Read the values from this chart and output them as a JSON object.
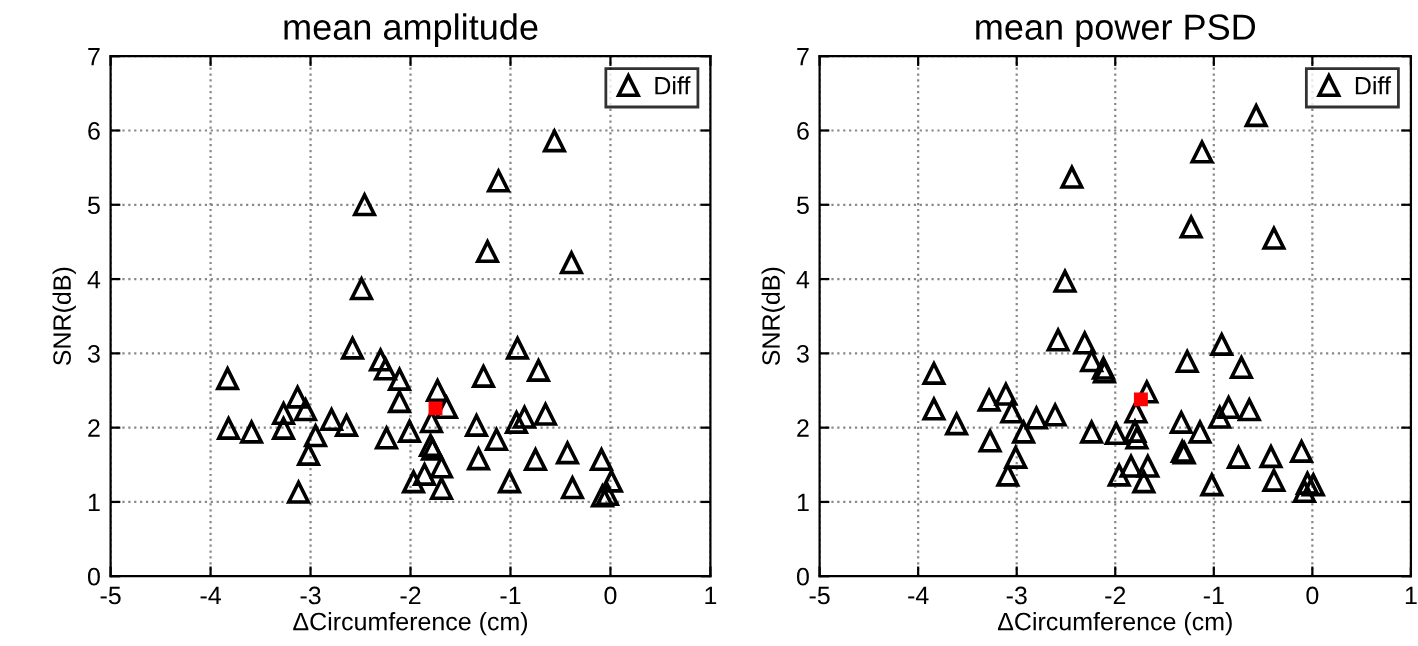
{
  "chart_data": [
    {
      "type": "scatter",
      "title": "mean amplitude",
      "xlabel": "ΔCircumference (cm)",
      "ylabel": "SNR(dB)",
      "xlim": [
        -5,
        1
      ],
      "ylim": [
        0,
        7
      ],
      "xticks": [
        -5,
        -4,
        -3,
        -2,
        -1,
        0,
        1
      ],
      "yticks": [
        0,
        1,
        2,
        3,
        4,
        5,
        6,
        7
      ],
      "grid": true,
      "legend": "top right",
      "series": [
        {
          "name": "Diff",
          "color": "#000000",
          "marker": "triangle",
          "x": [
            -0.56,
            -1.12,
            -2.46,
            -1.23,
            -0.39,
            -2.49,
            -2.58,
            -0.93,
            -2.3,
            -2.25,
            -0.72,
            -3.83,
            -1.27,
            -2.11,
            -3.13,
            -2.11,
            -1.73,
            -1.64,
            -3.27,
            -3.05,
            -0.65,
            -0.86,
            -0.94,
            -2.79,
            -2.64,
            -3.82,
            -3.59,
            -3.27,
            -2.95,
            -1.79,
            -2.01,
            -2.24,
            -1.34,
            -1.14,
            -1.8,
            -1.78,
            -3.02,
            -1.32,
            -0.43,
            -0.75,
            -0.09,
            -1.69,
            -1.86,
            -1.97,
            -1.69,
            -1.01,
            -0.38,
            0.01,
            -0.08,
            -0.03,
            -3.12
          ],
          "values": [
            5.86,
            5.32,
            5.0,
            4.37,
            4.22,
            3.87,
            3.07,
            3.07,
            2.91,
            2.79,
            2.77,
            2.66,
            2.69,
            2.65,
            2.41,
            2.35,
            2.5,
            2.27,
            2.19,
            2.24,
            2.18,
            2.14,
            2.07,
            2.11,
            2.03,
            1.99,
            1.94,
            1.99,
            1.89,
            2.08,
            1.95,
            1.86,
            2.03,
            1.84,
            1.76,
            1.71,
            1.64,
            1.58,
            1.66,
            1.57,
            1.57,
            1.47,
            1.37,
            1.27,
            1.18,
            1.27,
            1.19,
            1.28,
            1.08,
            1.1,
            1.13
          ]
        },
        {
          "color": "#ff0000",
          "marker": "square",
          "x": [
            -1.75
          ],
          "values": [
            2.26
          ]
        }
      ]
    },
    {
      "type": "scatter",
      "title": "mean power PSD",
      "xlabel": "ΔCircumference (cm)",
      "ylabel": "SNR(dB)",
      "xlim": [
        -5,
        1
      ],
      "ylim": [
        0,
        7
      ],
      "xticks": [
        -5,
        -4,
        -3,
        -2,
        -1,
        0,
        1
      ],
      "yticks": [
        0,
        1,
        2,
        3,
        4,
        5,
        6,
        7
      ],
      "grid": true,
      "legend": "top right",
      "series": [
        {
          "name": "Diff",
          "color": "#000000",
          "marker": "triangle",
          "x": [
            -0.57,
            -1.12,
            -2.44,
            -1.23,
            -0.39,
            -2.51,
            -2.58,
            -2.31,
            -0.92,
            -2.24,
            -2.12,
            -2.11,
            -1.27,
            -0.72,
            -3.84,
            -3.11,
            -3.28,
            -3.05,
            -3.84,
            -3.61,
            -2.8,
            -2.61,
            -2.93,
            -1.68,
            -1.79,
            -0.85,
            -0.64,
            -0.94,
            -1.33,
            -2.24,
            -1.99,
            -1.8,
            -1.78,
            -1.14,
            -3.27,
            -3.01,
            -1.32,
            -1.3,
            -0.75,
            -0.42,
            -0.11,
            -1.84,
            -1.67,
            -1.96,
            -3.09,
            -1.71,
            -1.02,
            -0.39,
            -0.05,
            0.01,
            -0.08
          ],
          "values": [
            6.2,
            5.71,
            5.37,
            4.7,
            4.55,
            3.97,
            3.18,
            3.14,
            3.12,
            2.9,
            2.8,
            2.75,
            2.89,
            2.81,
            2.73,
            2.45,
            2.37,
            2.21,
            2.25,
            2.05,
            2.13,
            2.17,
            1.94,
            2.48,
            2.21,
            2.27,
            2.24,
            2.14,
            2.07,
            1.94,
            1.92,
            1.95,
            1.86,
            1.94,
            1.82,
            1.6,
            1.68,
            1.66,
            1.6,
            1.61,
            1.68,
            1.48,
            1.48,
            1.36,
            1.36,
            1.27,
            1.23,
            1.29,
            1.25,
            1.23,
            1.14
          ]
        },
        {
          "color": "#ff0000",
          "marker": "square",
          "x": [
            -1.74
          ],
          "values": [
            2.38
          ]
        }
      ]
    }
  ]
}
